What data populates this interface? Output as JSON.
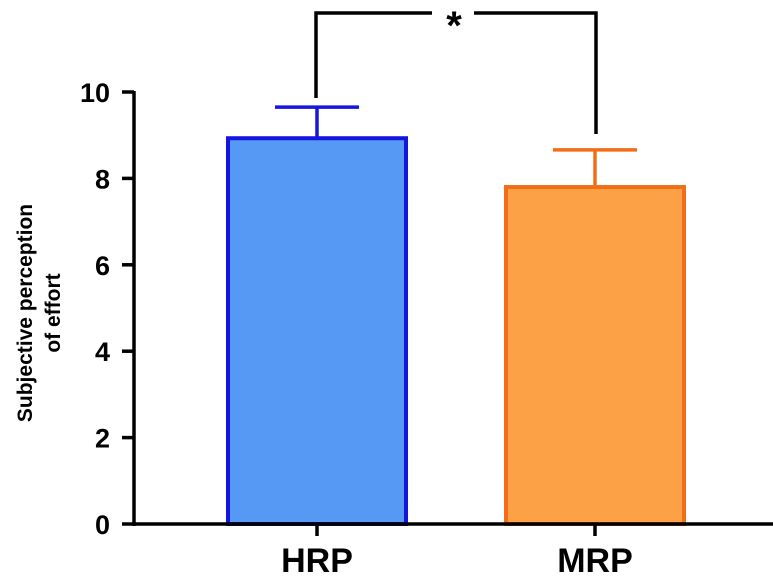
{
  "chart_data": {
    "type": "bar",
    "categories": [
      "HRP",
      "MRP"
    ],
    "values": [
      8.93,
      7.8
    ],
    "error_upper": [
      9.65,
      8.66
    ],
    "ylabel_lines": [
      "Subjective perception",
      "of effort"
    ],
    "ylim": [
      0,
      10
    ],
    "yticks": [
      "0",
      "2",
      "4",
      "6",
      "8",
      "10"
    ],
    "significance": "*",
    "grid": false,
    "colors": {
      "fill": [
        "#5599f5",
        "#fca146"
      ],
      "stroke": [
        "#1515e0",
        "#f26d18"
      ]
    }
  }
}
